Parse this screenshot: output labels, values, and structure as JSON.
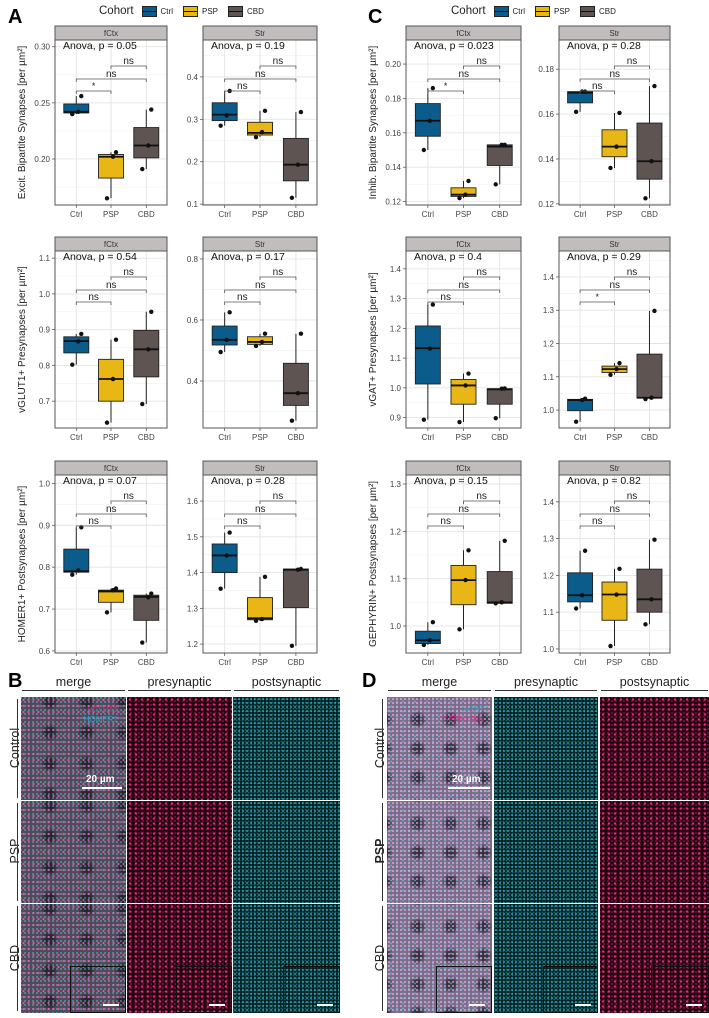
{
  "panel_letters": [
    "A",
    "B",
    "C",
    "D"
  ],
  "legend": {
    "title": "Cohort",
    "items": [
      {
        "label": "Ctrl",
        "color": "#0b5c8a"
      },
      {
        "label": "PSP",
        "color": "#e8b716"
      },
      {
        "label": "CBD",
        "color": "#5e5452"
      }
    ]
  },
  "chart_data": [
    {
      "type": "box",
      "panel": "A",
      "facet": "fCtx",
      "ylabel": "Excit. Bipartite Synapses [per  µm²]",
      "anova": "Anova, p = 0.05",
      "ylim": [
        0.159,
        0.306
      ],
      "yticks": [
        0.2,
        0.25,
        0.3
      ],
      "ticklabels": [
        "0.20",
        "0.25",
        "0.30"
      ],
      "categories": [
        "Ctrl",
        "PSP",
        "CBD"
      ],
      "boxes": [
        {
          "q1": 0.241,
          "median": 0.242,
          "q3": 0.249,
          "lo": 0.24,
          "hi": 0.256,
          "points": [
            0.24,
            0.242,
            0.256
          ]
        },
        {
          "q1": 0.183,
          "median": 0.202,
          "q3": 0.204,
          "lo": 0.165,
          "hi": 0.206,
          "points": [
            0.165,
            0.202,
            0.206
          ]
        },
        {
          "q1": 0.201,
          "median": 0.212,
          "q3": 0.228,
          "lo": 0.191,
          "hi": 0.244,
          "points": [
            0.191,
            0.212,
            0.244
          ]
        }
      ],
      "comparisons": [
        {
          "pair": [
            "PSP",
            "CBD"
          ],
          "label": "ns"
        },
        {
          "pair": [
            "Ctrl",
            "CBD"
          ],
          "label": "ns"
        },
        {
          "pair": [
            "Ctrl",
            "PSP"
          ],
          "label": "*"
        }
      ]
    },
    {
      "type": "box",
      "panel": "A",
      "facet": "Str",
      "ylabel": "",
      "anova": "Anova, p = 0.19",
      "ylim": [
        0.098,
        0.487
      ],
      "yticks": [
        0.1,
        0.2,
        0.3,
        0.4
      ],
      "ticklabels": [
        "0.1",
        "0.2",
        "0.3",
        "0.4"
      ],
      "categories": [
        "Ctrl",
        "PSP",
        "CBD"
      ],
      "boxes": [
        {
          "q1": 0.297,
          "median": 0.311,
          "q3": 0.339,
          "lo": 0.285,
          "hi": 0.367,
          "points": [
            0.285,
            0.309,
            0.367
          ]
        },
        {
          "q1": 0.263,
          "median": 0.268,
          "q3": 0.293,
          "lo": 0.258,
          "hi": 0.32,
          "points": [
            0.258,
            0.27,
            0.32
          ]
        },
        {
          "q1": 0.155,
          "median": 0.193,
          "q3": 0.255,
          "lo": 0.115,
          "hi": 0.317,
          "points": [
            0.115,
            0.193,
            0.317
          ]
        }
      ],
      "comparisons": [
        {
          "pair": [
            "PSP",
            "CBD"
          ],
          "label": "ns"
        },
        {
          "pair": [
            "Ctrl",
            "CBD"
          ],
          "label": "ns"
        },
        {
          "pair": [
            "Ctrl",
            "PSP"
          ],
          "label": "ns"
        }
      ]
    },
    {
      "type": "box",
      "panel": "A",
      "facet": "fCtx",
      "ylabel": "vGLUT1+ Presynapses [per  µm²]",
      "anova": "Anova, p = 0.54",
      "ylim": [
        0.625,
        1.12
      ],
      "yticks": [
        0.7,
        0.8,
        0.9,
        1.0,
        1.1
      ],
      "ticklabels": [
        "0.7",
        "0.8",
        "0.9",
        "1.0",
        "1.1"
      ],
      "categories": [
        "Ctrl",
        "PSP",
        "CBD"
      ],
      "boxes": [
        {
          "q1": 0.835,
          "median": 0.868,
          "q3": 0.88,
          "lo": 0.802,
          "hi": 0.888,
          "points": [
            0.802,
            0.867,
            0.888
          ]
        },
        {
          "q1": 0.7,
          "median": 0.762,
          "q3": 0.817,
          "lo": 0.64,
          "hi": 0.872,
          "points": [
            0.64,
            0.762,
            0.872
          ]
        },
        {
          "q1": 0.768,
          "median": 0.845,
          "q3": 0.898,
          "lo": 0.692,
          "hi": 0.95,
          "points": [
            0.692,
            0.845,
            0.95
          ]
        }
      ],
      "comparisons": [
        {
          "pair": [
            "PSP",
            "CBD"
          ],
          "label": "ns"
        },
        {
          "pair": [
            "Ctrl",
            "CBD"
          ],
          "label": "ns"
        },
        {
          "pair": [
            "Ctrl",
            "PSP"
          ],
          "label": "ns"
        }
      ]
    },
    {
      "type": "box",
      "panel": "A",
      "facet": "Str",
      "ylabel": "",
      "anova": "Anova, p = 0.17",
      "ylim": [
        0.246,
        0.826
      ],
      "yticks": [
        0.4,
        0.6,
        0.8
      ],
      "ticklabels": [
        "0.4",
        "0.6",
        "0.8"
      ],
      "categories": [
        "Ctrl",
        "PSP",
        "CBD"
      ],
      "boxes": [
        {
          "q1": 0.518,
          "median": 0.535,
          "q3": 0.58,
          "lo": 0.495,
          "hi": 0.625,
          "points": [
            0.495,
            0.535,
            0.625
          ]
        },
        {
          "q1": 0.52,
          "median": 0.528,
          "q3": 0.545,
          "lo": 0.515,
          "hi": 0.555,
          "points": [
            0.515,
            0.528,
            0.555
          ]
        },
        {
          "q1": 0.32,
          "median": 0.36,
          "q3": 0.458,
          "lo": 0.27,
          "hi": 0.555,
          "points": [
            0.27,
            0.36,
            0.555
          ]
        }
      ],
      "comparisons": [
        {
          "pair": [
            "PSP",
            "CBD"
          ],
          "label": "ns"
        },
        {
          "pair": [
            "Ctrl",
            "CBD"
          ],
          "label": "ns"
        },
        {
          "pair": [
            "Ctrl",
            "PSP"
          ],
          "label": "ns"
        }
      ]
    },
    {
      "type": "box",
      "panel": "A",
      "facet": "fCtx",
      "ylabel": "HOMER1+ Postsynapses [per  µm²]",
      "anova": "Anova, p = 0.07",
      "ylim": [
        0.595,
        1.02
      ],
      "yticks": [
        0.6,
        0.7,
        0.8,
        0.9,
        1.0
      ],
      "ticklabels": [
        "0.6",
        "0.7",
        "0.8",
        "0.9",
        "1.0"
      ],
      "categories": [
        "Ctrl",
        "PSP",
        "CBD"
      ],
      "boxes": [
        {
          "q1": 0.788,
          "median": 0.79,
          "q3": 0.843,
          "lo": 0.782,
          "hi": 0.895,
          "points": [
            0.782,
            0.792,
            0.895
          ]
        },
        {
          "q1": 0.716,
          "median": 0.742,
          "q3": 0.745,
          "lo": 0.692,
          "hi": 0.749,
          "points": [
            0.692,
            0.745,
            0.749
          ]
        },
        {
          "q1": 0.673,
          "median": 0.729,
          "q3": 0.733,
          "lo": 0.62,
          "hi": 0.737,
          "points": [
            0.62,
            0.728,
            0.737
          ]
        }
      ],
      "comparisons": [
        {
          "pair": [
            "PSP",
            "CBD"
          ],
          "label": "ns"
        },
        {
          "pair": [
            "Ctrl",
            "CBD"
          ],
          "label": "ns"
        },
        {
          "pair": [
            "Ctrl",
            "PSP"
          ],
          "label": "ns"
        }
      ]
    },
    {
      "type": "box",
      "panel": "A",
      "facet": "Str",
      "ylabel": "",
      "anova": "Anova, p = 0.28",
      "ylim": [
        1.175,
        1.673
      ],
      "yticks": [
        1.2,
        1.3,
        1.4,
        1.5,
        1.6
      ],
      "ticklabels": [
        "1.2",
        "1.3",
        "1.4",
        "1.5",
        "1.6"
      ],
      "categories": [
        "Ctrl",
        "PSP",
        "CBD"
      ],
      "boxes": [
        {
          "q1": 1.4,
          "median": 1.448,
          "q3": 1.48,
          "lo": 1.355,
          "hi": 1.512,
          "points": [
            1.355,
            1.448,
            1.512
          ]
        },
        {
          "q1": 1.268,
          "median": 1.272,
          "q3": 1.33,
          "lo": 1.265,
          "hi": 1.388,
          "points": [
            1.265,
            1.27,
            1.388
          ]
        },
        {
          "q1": 1.302,
          "median": 1.408,
          "q3": 1.41,
          "lo": 1.195,
          "hi": 1.41,
          "points": [
            1.195,
            1.408,
            1.41
          ]
        }
      ],
      "comparisons": [
        {
          "pair": [
            "PSP",
            "CBD"
          ],
          "label": "ns"
        },
        {
          "pair": [
            "Ctrl",
            "CBD"
          ],
          "label": "ns"
        },
        {
          "pair": [
            "Ctrl",
            "PSP"
          ],
          "label": "ns"
        }
      ]
    },
    {
      "type": "box",
      "panel": "C",
      "facet": "fCtx",
      "ylabel": "Inhib. Bipartite Synapses [per  µm²]",
      "anova": "Anova, p = 0.023",
      "ylim": [
        0.118,
        0.214
      ],
      "yticks": [
        0.12,
        0.14,
        0.16,
        0.18,
        0.2
      ],
      "ticklabels": [
        "0.12",
        "0.14",
        "0.16",
        "0.18",
        "0.20"
      ],
      "categories": [
        "Ctrl",
        "PSP",
        "CBD"
      ],
      "boxes": [
        {
          "q1": 0.158,
          "median": 0.167,
          "q3": 0.177,
          "lo": 0.15,
          "hi": 0.186,
          "points": [
            0.15,
            0.167,
            0.186
          ]
        },
        {
          "q1": 0.123,
          "median": 0.124,
          "q3": 0.128,
          "lo": 0.122,
          "hi": 0.132,
          "points": [
            0.122,
            0.124,
            0.132
          ]
        },
        {
          "q1": 0.141,
          "median": 0.152,
          "q3": 0.153,
          "lo": 0.13,
          "hi": 0.153,
          "points": [
            0.13,
            0.153,
            0.153
          ]
        }
      ],
      "comparisons": [
        {
          "pair": [
            "PSP",
            "CBD"
          ],
          "label": "ns"
        },
        {
          "pair": [
            "Ctrl",
            "CBD"
          ],
          "label": "ns"
        },
        {
          "pair": [
            "Ctrl",
            "PSP"
          ],
          "label": "*"
        }
      ]
    },
    {
      "type": "box",
      "panel": "C",
      "facet": "Str",
      "ylabel": "",
      "anova": "Anova, p = 0.28",
      "ylim": [
        0.1195,
        0.193
      ],
      "yticks": [
        0.12,
        0.14,
        0.16,
        0.18
      ],
      "ticklabels": [
        "0.12",
        "0.14",
        "0.16",
        "0.18"
      ],
      "categories": [
        "Ctrl",
        "PSP",
        "CBD"
      ],
      "boxes": [
        {
          "q1": 0.165,
          "median": 0.1695,
          "q3": 0.17,
          "lo": 0.161,
          "hi": 0.17,
          "points": [
            0.161,
            0.17,
            0.17
          ]
        },
        {
          "q1": 0.141,
          "median": 0.1455,
          "q3": 0.153,
          "lo": 0.136,
          "hi": 0.1605,
          "points": [
            0.136,
            0.1455,
            0.1605
          ]
        },
        {
          "q1": 0.131,
          "median": 0.139,
          "q3": 0.156,
          "lo": 0.1225,
          "hi": 0.1725,
          "points": [
            0.1225,
            0.139,
            0.1725
          ]
        }
      ],
      "comparisons": [
        {
          "pair": [
            "PSP",
            "CBD"
          ],
          "label": "ns"
        },
        {
          "pair": [
            "Ctrl",
            "CBD"
          ],
          "label": "ns"
        },
        {
          "pair": [
            "Ctrl",
            "PSP"
          ],
          "label": "ns"
        }
      ]
    },
    {
      "type": "box",
      "panel": "C",
      "facet": "fCtx",
      "ylabel": "vGAT+ Presynapses [per  µm²]",
      "anova": "Anova, p = 0.4",
      "ylim": [
        0.865,
        1.46
      ],
      "yticks": [
        0.9,
        1.0,
        1.1,
        1.2,
        1.3,
        1.4
      ],
      "ticklabels": [
        "0.9",
        "1.0",
        "1.1",
        "1.2",
        "1.3",
        "1.4"
      ],
      "categories": [
        "Ctrl",
        "PSP",
        "CBD"
      ],
      "boxes": [
        {
          "q1": 1.013,
          "median": 1.133,
          "q3": 1.208,
          "lo": 0.893,
          "hi": 1.28,
          "points": [
            0.893,
            1.132,
            1.28
          ]
        },
        {
          "q1": 0.945,
          "median": 1.008,
          "q3": 1.028,
          "lo": 0.885,
          "hi": 1.048,
          "points": [
            0.885,
            1.008,
            1.048
          ]
        },
        {
          "q1": 0.945,
          "median": 0.995,
          "q3": 0.997,
          "lo": 0.898,
          "hi": 0.998,
          "points": [
            0.898,
            0.997,
            0.998
          ]
        }
      ],
      "comparisons": [
        {
          "pair": [
            "PSP",
            "CBD"
          ],
          "label": "ns"
        },
        {
          "pair": [
            "Ctrl",
            "CBD"
          ],
          "label": "ns"
        },
        {
          "pair": [
            "Ctrl",
            "PSP"
          ],
          "label": "ns"
        }
      ]
    },
    {
      "type": "box",
      "panel": "C",
      "facet": "Str",
      "ylabel": "",
      "anova": "Anova, p = 0.29",
      "ylim": [
        0.946,
        1.478
      ],
      "yticks": [
        1.0,
        1.1,
        1.2,
        1.3,
        1.4
      ],
      "ticklabels": [
        "1.0",
        "1.1",
        "1.2",
        "1.3",
        "1.4"
      ],
      "categories": [
        "Ctrl",
        "PSP",
        "CBD"
      ],
      "boxes": [
        {
          "q1": 0.998,
          "median": 1.03,
          "q3": 1.032,
          "lo": 0.965,
          "hi": 1.034,
          "points": [
            0.965,
            1.03,
            1.034
          ]
        },
        {
          "q1": 1.113,
          "median": 1.123,
          "q3": 1.132,
          "lo": 1.106,
          "hi": 1.141,
          "points": [
            1.106,
            1.123,
            1.141
          ]
        },
        {
          "q1": 1.036,
          "median": 1.037,
          "q3": 1.168,
          "lo": 1.033,
          "hi": 1.298,
          "points": [
            1.033,
            1.037,
            1.298
          ]
        }
      ],
      "comparisons": [
        {
          "pair": [
            "PSP",
            "CBD"
          ],
          "label": "ns"
        },
        {
          "pair": [
            "Ctrl",
            "CBD"
          ],
          "label": "ns"
        },
        {
          "pair": [
            "Ctrl",
            "PSP"
          ],
          "label": "*"
        }
      ]
    },
    {
      "type": "box",
      "panel": "C",
      "facet": "fCtx",
      "ylabel": "GEPHYRIN+ Postsynapses [per  µm²]",
      "anova": "Anova, p = 0.15",
      "ylim": [
        0.943,
        1.319
      ],
      "yticks": [
        1.0,
        1.1,
        1.2,
        1.3
      ],
      "ticklabels": [
        "1.0",
        "1.1",
        "1.2",
        "1.3"
      ],
      "categories": [
        "Ctrl",
        "PSP",
        "CBD"
      ],
      "boxes": [
        {
          "q1": 0.963,
          "median": 0.97,
          "q3": 0.989,
          "lo": 0.96,
          "hi": 1.008,
          "points": [
            0.96,
            0.97,
            1.008
          ]
        },
        {
          "q1": 1.045,
          "median": 1.097,
          "q3": 1.128,
          "lo": 0.993,
          "hi": 1.16,
          "points": [
            0.993,
            1.097,
            1.16
          ]
        },
        {
          "q1": 1.048,
          "median": 1.05,
          "q3": 1.115,
          "lo": 1.048,
          "hi": 1.18,
          "points": [
            1.048,
            1.05,
            1.18
          ]
        }
      ],
      "comparisons": [
        {
          "pair": [
            "PSP",
            "CBD"
          ],
          "label": "ns"
        },
        {
          "pair": [
            "Ctrl",
            "CBD"
          ],
          "label": "ns"
        },
        {
          "pair": [
            "Ctrl",
            "PSP"
          ],
          "label": "ns"
        }
      ]
    },
    {
      "type": "box",
      "panel": "C",
      "facet": "Str",
      "ylabel": "",
      "anova": "Anova, p = 0.82",
      "ylim": [
        0.989,
        1.473
      ],
      "yticks": [
        1.0,
        1.1,
        1.2,
        1.3,
        1.4
      ],
      "ticklabels": [
        "1.0",
        "1.1",
        "1.2",
        "1.3",
        "1.4"
      ],
      "categories": [
        "Ctrl",
        "PSP",
        "CBD"
      ],
      "boxes": [
        {
          "q1": 1.128,
          "median": 1.146,
          "q3": 1.207,
          "lo": 1.11,
          "hi": 1.267,
          "points": [
            1.11,
            1.146,
            1.267
          ]
        },
        {
          "q1": 1.078,
          "median": 1.148,
          "q3": 1.182,
          "lo": 1.008,
          "hi": 1.218,
          "points": [
            1.008,
            1.148,
            1.218
          ]
        },
        {
          "q1": 1.1,
          "median": 1.135,
          "q3": 1.217,
          "lo": 1.067,
          "hi": 1.297,
          "points": [
            1.067,
            1.135,
            1.297
          ]
        }
      ],
      "comparisons": [
        {
          "pair": [
            "PSP",
            "CBD"
          ],
          "label": "ns"
        },
        {
          "pair": [
            "Ctrl",
            "CBD"
          ],
          "label": "ns"
        },
        {
          "pair": [
            "Ctrl",
            "PSP"
          ],
          "label": "ns"
        }
      ]
    }
  ],
  "micrographs": {
    "columns": [
      "merge",
      "presynaptic",
      "postsynaptic"
    ],
    "rows": [
      "Control",
      "PSP",
      "CBD"
    ],
    "scale_label": "20 µm",
    "B": {
      "channels": [
        {
          "label": "vGLUT1",
          "color": "#e0287f"
        },
        {
          "label": "HOMER1",
          "color": "#2aa9c9"
        }
      ]
    },
    "D": {
      "channels": [
        {
          "label": "vGAT",
          "color": "#2aa9c9"
        },
        {
          "label": "GEPHYRIN",
          "color": "#e0287f"
        }
      ]
    }
  }
}
